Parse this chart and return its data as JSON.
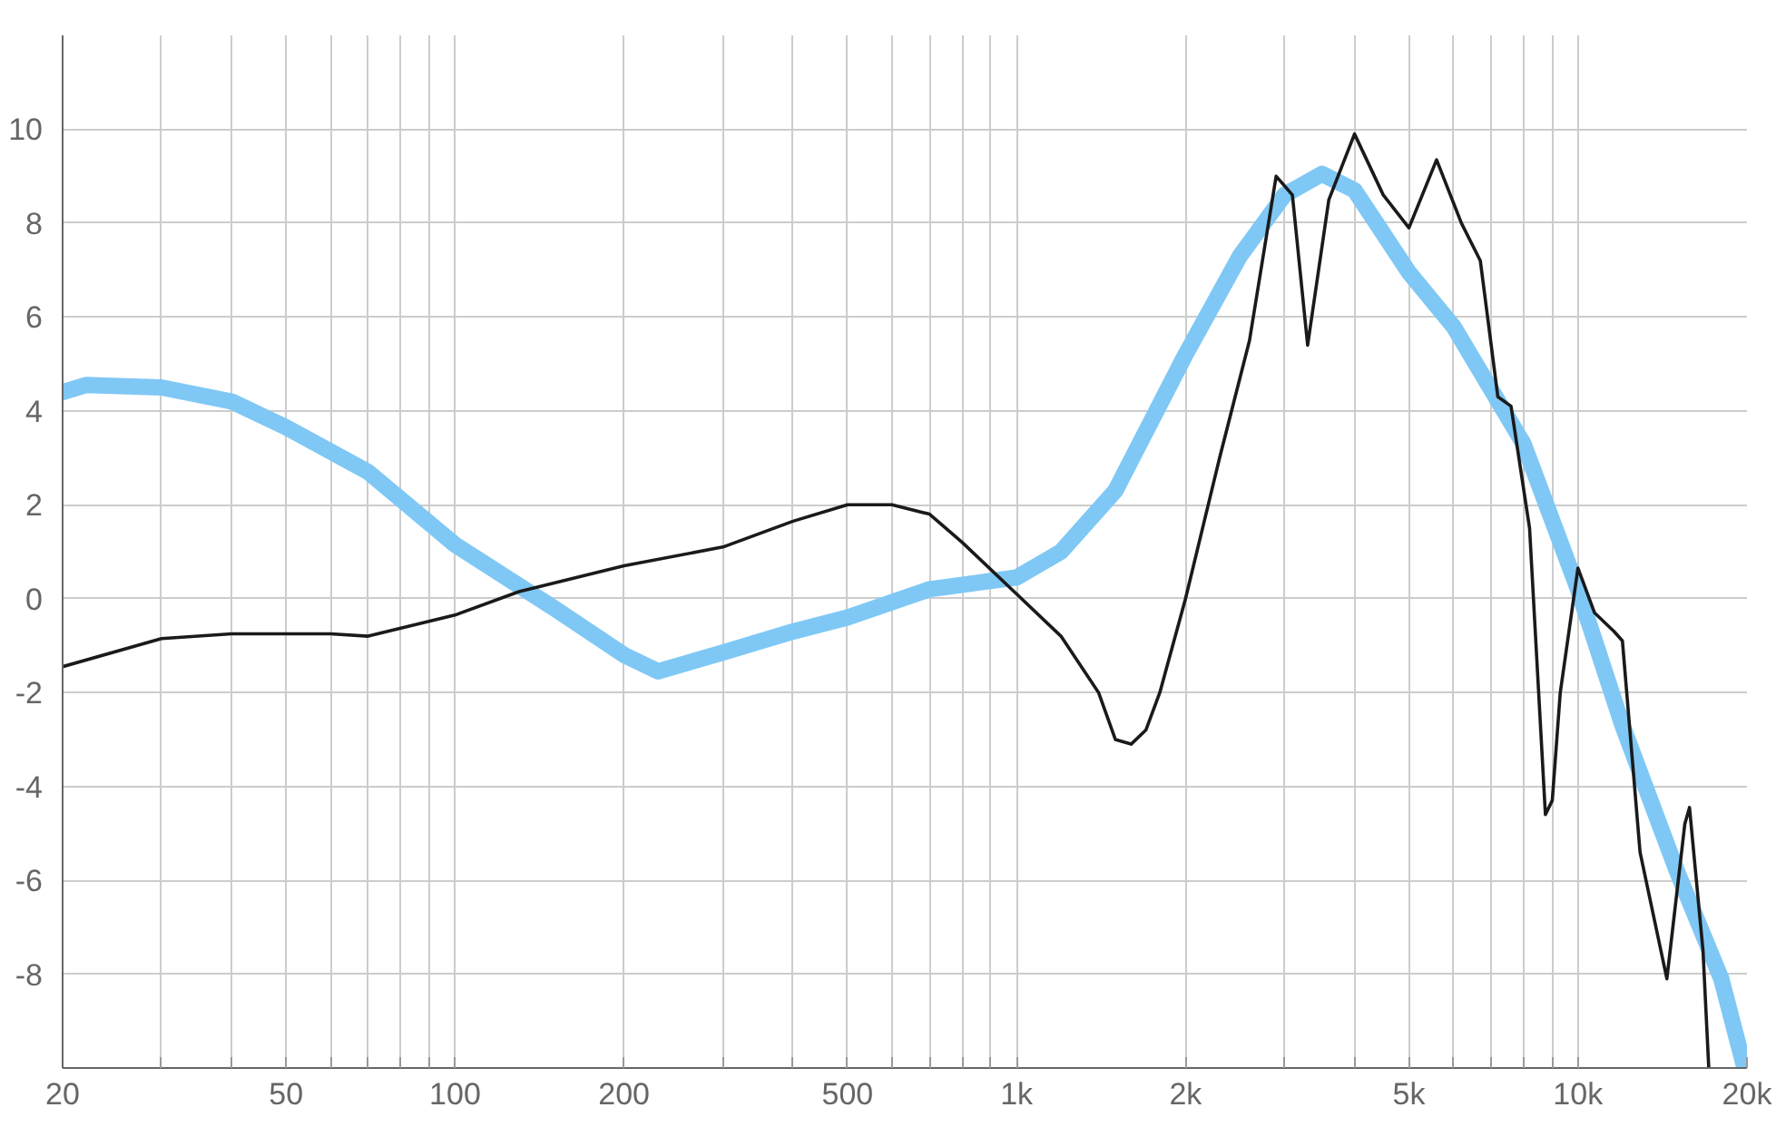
{
  "chart_data": {
    "type": "line",
    "x": [
      20,
      22,
      30,
      40,
      50,
      70,
      100,
      150,
      200,
      230,
      300,
      400,
      500,
      700,
      1000,
      1200,
      1500,
      2000,
      2500,
      3000,
      3500,
      4000,
      5000,
      6000,
      8000,
      10000,
      12000,
      15000,
      18000,
      19800
    ],
    "series": [
      {
        "color": "#7fc8f5",
        "values": [
          4.4,
          4.55,
          4.5,
          4.2,
          3.65,
          2.7,
          1.15,
          -0.2,
          -1.2,
          -1.55,
          -1.15,
          -0.7,
          -0.4,
          0.2,
          0.45,
          1.0,
          2.3,
          5.2,
          7.3,
          8.6,
          9.05,
          8.7,
          6.95,
          5.8,
          3.3,
          0.2,
          -2.7,
          -5.8,
          -8.1,
          -10
        ]
      },
      {
        "x": [
          20,
          30,
          40,
          60,
          70,
          100,
          130,
          200,
          300,
          400,
          500,
          600,
          700,
          800,
          1000,
          1200,
          1400,
          1500,
          1600,
          1700,
          1800,
          2000,
          2300,
          2600,
          2900,
          3100,
          3300,
          3600,
          4000,
          4500,
          5000,
          5600,
          6200,
          6700,
          7200,
          7600,
          8200,
          8750,
          9000,
          9300,
          10000,
          10700,
          11600,
          12000,
          12900,
          14400,
          15500,
          15800,
          16700,
          17100
        ],
        "color": "#1a1a1a",
        "values": [
          -1.45,
          -0.85,
          -0.75,
          -0.75,
          -0.8,
          -0.35,
          0.15,
          0.7,
          1.1,
          1.65,
          2.0,
          2.0,
          1.8,
          1.2,
          0.1,
          -0.8,
          -2.0,
          -3.0,
          -3.1,
          -2.8,
          -2.0,
          0,
          3.0,
          5.5,
          9.0,
          8.6,
          5.4,
          8.5,
          9.9,
          8.6,
          7.9,
          9.35,
          8.0,
          7.2,
          4.3,
          4.1,
          1.5,
          -4.6,
          -4.3,
          -2.0,
          0.65,
          -0.3,
          -0.7,
          -0.9,
          -5.4,
          -8.1,
          -4.8,
          -4.45,
          -7.5,
          -10
        ]
      }
    ],
    "xlim": [
      20,
      20000
    ],
    "ylim": [
      -10,
      12
    ],
    "log": "x",
    "grid": true,
    "line_style": "solid",
    "marker": "none",
    "xticks": [
      20,
      {
        "value": 30,
        "label": null
      },
      {
        "value": 40,
        "label": null
      },
      50,
      {
        "value": 60,
        "label": null
      },
      {
        "value": 70,
        "label": null
      },
      {
        "value": 80,
        "label": null
      },
      {
        "value": 90,
        "label": null
      },
      100,
      200,
      {
        "value": 300,
        "label": null
      },
      {
        "value": 400,
        "label": null
      },
      500,
      {
        "value": 600,
        "label": null
      },
      {
        "value": 700,
        "label": null
      },
      {
        "value": 800,
        "label": null
      },
      {
        "value": 900,
        "label": null
      },
      {
        "value": 1000,
        "label": "1k"
      },
      {
        "value": 2000,
        "label": "2k"
      },
      {
        "value": 3000,
        "label": null
      },
      {
        "value": 4000,
        "label": null
      },
      {
        "value": 5000,
        "label": "5k"
      },
      {
        "value": 6000,
        "label": null
      },
      {
        "value": 7000,
        "label": null
      },
      {
        "value": 8000,
        "label": null
      },
      {
        "value": 9000,
        "label": null
      },
      {
        "value": 10000,
        "label": "10k"
      },
      {
        "value": 20000,
        "label": "20k"
      }
    ],
    "yticks": [
      -8,
      -6,
      -4,
      -2,
      0,
      2,
      4,
      6,
      8,
      10
    ]
  }
}
